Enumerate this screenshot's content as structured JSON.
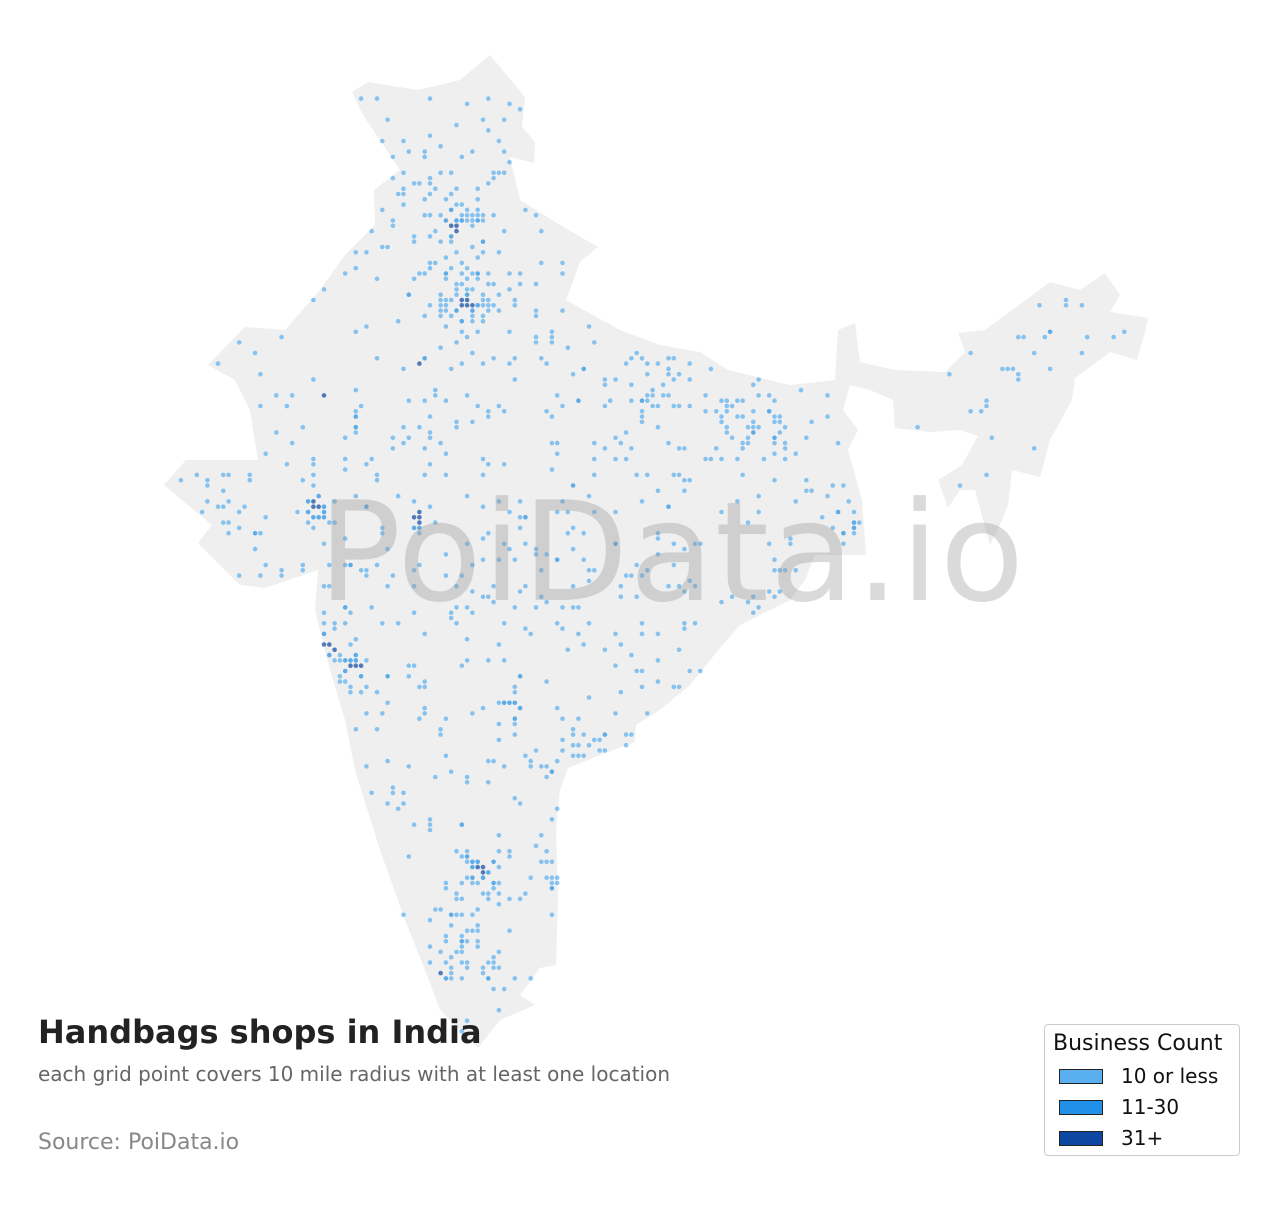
{
  "title": "Handbags shops in India",
  "subtitle": "each grid point covers 10 mile radius with at least one location",
  "source": "Source: PoiData.io",
  "watermark": "PoiData.io",
  "map": {
    "land_color": "#efefef",
    "region": "India"
  },
  "legend": {
    "title": "Business Count",
    "items": [
      {
        "label": "10 or less",
        "color": "#5aaff0"
      },
      {
        "label": "11-30",
        "color": "#2090e8"
      },
      {
        "label": "31+",
        "color": "#0d47a1"
      }
    ]
  }
}
